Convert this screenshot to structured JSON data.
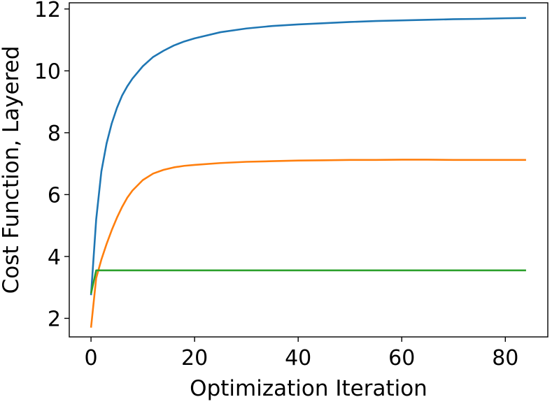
{
  "chart_data": {
    "type": "line",
    "title": "",
    "xlabel": "Optimization Iteration",
    "ylabel": "Cost Function, Layered",
    "xlim": [
      -4.2,
      88.2
    ],
    "ylim": [
      1.4,
      12.2
    ],
    "xticks": [
      0,
      20,
      40,
      60,
      80
    ],
    "yticks": [
      2,
      4,
      6,
      8,
      10,
      12
    ],
    "grid": false,
    "legend": "none",
    "series": [
      {
        "color": "#1f77b4",
        "x": [
          0,
          1,
          2,
          3,
          4,
          5,
          6,
          7,
          8,
          10,
          12,
          14,
          16,
          18,
          20,
          25,
          30,
          35,
          40,
          45,
          50,
          55,
          60,
          65,
          70,
          75,
          80,
          84
        ],
        "y": [
          2.75,
          5.2,
          6.75,
          7.65,
          8.3,
          8.8,
          9.2,
          9.5,
          9.75,
          10.15,
          10.45,
          10.65,
          10.82,
          10.95,
          11.05,
          11.25,
          11.37,
          11.45,
          11.5,
          11.54,
          11.58,
          11.61,
          11.63,
          11.65,
          11.67,
          11.68,
          11.7,
          11.71
        ]
      },
      {
        "color": "#ff7f0e",
        "x": [
          0,
          1,
          2,
          3,
          4,
          5,
          6,
          7,
          8,
          10,
          12,
          14,
          16,
          18,
          20,
          25,
          30,
          35,
          40,
          45,
          50,
          55,
          60,
          65,
          70,
          75,
          80,
          84
        ],
        "y": [
          1.7,
          3.3,
          3.9,
          4.4,
          4.85,
          5.25,
          5.6,
          5.9,
          6.13,
          6.47,
          6.68,
          6.8,
          6.88,
          6.93,
          6.96,
          7.02,
          7.06,
          7.08,
          7.1,
          7.11,
          7.12,
          7.12,
          7.13,
          7.13,
          7.12,
          7.12,
          7.12,
          7.12
        ]
      },
      {
        "color": "#2ca02c",
        "x": [
          0,
          1,
          2,
          10,
          20,
          40,
          60,
          84
        ],
        "y": [
          2.8,
          3.55,
          3.55,
          3.55,
          3.55,
          3.55,
          3.55,
          3.55
        ]
      }
    ]
  }
}
